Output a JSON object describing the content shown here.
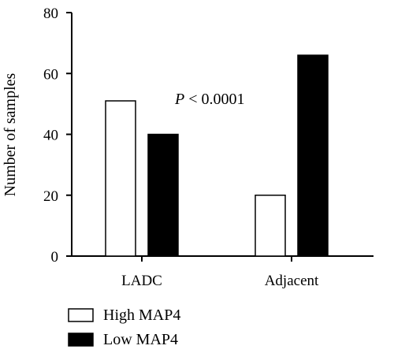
{
  "chart_data": {
    "type": "bar",
    "categories": [
      "LADC",
      "Adjacent"
    ],
    "series": [
      {
        "name": "High MAP4",
        "values": [
          51,
          20
        ],
        "color": "#ffffff"
      },
      {
        "name": "Low MAP4",
        "values": [
          40,
          66
        ],
        "color": "#000000"
      }
    ],
    "ylabel": "Number of samples",
    "xlabel": "",
    "ylim": [
      0,
      80
    ],
    "yticks": [
      0,
      20,
      40,
      60,
      80
    ],
    "annotation": {
      "prefix": "P",
      "text": " < 0.0001"
    },
    "legend_position": "bottom-left",
    "grid": false
  }
}
